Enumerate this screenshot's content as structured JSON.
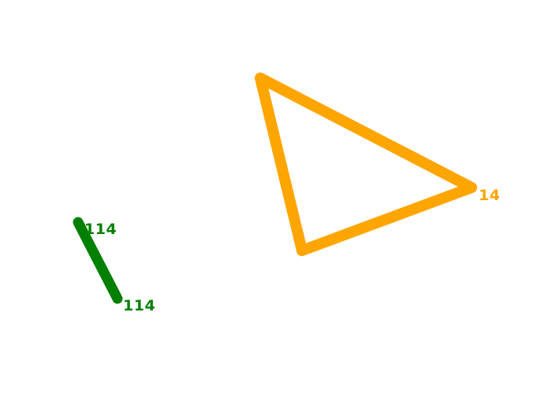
{
  "colors": {
    "background": "#ffffff",
    "green": "#008000",
    "orange": "#ffa500"
  },
  "segment": {
    "color_name": "green",
    "label_start": "114",
    "label_end": "114"
  },
  "triangle": {
    "color_name": "orange",
    "label": "14"
  }
}
